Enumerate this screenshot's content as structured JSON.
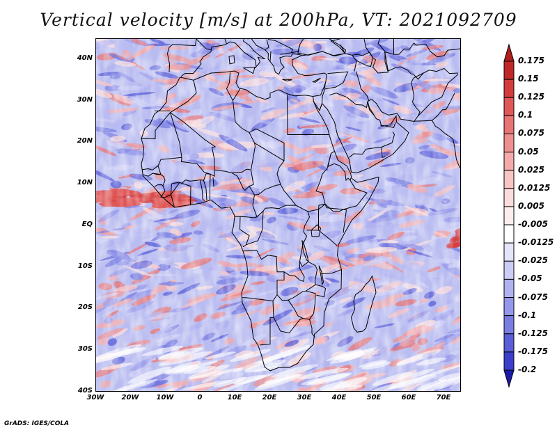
{
  "title": "Vertical velocity [m/s] at 200hPa, VT: 2021092709",
  "credit": "GrADS: IGES/COLA",
  "map": {
    "lon_range": [
      -30,
      75
    ],
    "lat_range": [
      -40,
      45
    ],
    "lat_ticks": [
      {
        "value": 40,
        "label": "40N"
      },
      {
        "value": 30,
        "label": "30N"
      },
      {
        "value": 20,
        "label": "20N"
      },
      {
        "value": 10,
        "label": "10N"
      },
      {
        "value": 0,
        "label": "EQ"
      },
      {
        "value": -10,
        "label": "10S"
      },
      {
        "value": -20,
        "label": "20S"
      },
      {
        "value": -30,
        "label": "30S"
      },
      {
        "value": -40,
        "label": "40S"
      }
    ],
    "lon_ticks": [
      {
        "value": -30,
        "label": "30W"
      },
      {
        "value": -20,
        "label": "20W"
      },
      {
        "value": -10,
        "label": "10W"
      },
      {
        "value": 0,
        "label": "0"
      },
      {
        "value": 10,
        "label": "10E"
      },
      {
        "value": 20,
        "label": "20E"
      },
      {
        "value": 30,
        "label": "30E"
      },
      {
        "value": 40,
        "label": "40E"
      },
      {
        "value": 50,
        "label": "50E"
      },
      {
        "value": 60,
        "label": "60E"
      },
      {
        "value": 70,
        "label": "70E"
      }
    ]
  },
  "colorbar": {
    "levels": [
      {
        "label": "0.175",
        "color": "#c02828"
      },
      {
        "label": "0.15",
        "color": "#d43c3c"
      },
      {
        "label": "0.125",
        "color": "#e05858"
      },
      {
        "label": "0.1",
        "color": "#e87474"
      },
      {
        "label": "0.075",
        "color": "#ef9090"
      },
      {
        "label": "0.05",
        "color": "#f4aaaa"
      },
      {
        "label": "0.025",
        "color": "#f8c4c4"
      },
      {
        "label": "0.0125",
        "color": "#fbdcdc"
      },
      {
        "label": "0.005",
        "color": "#fdeeee"
      },
      {
        "label": "-0.005",
        "color": "#ffffff"
      },
      {
        "label": "-0.0125",
        "color": "#e4e4fb"
      },
      {
        "label": "-0.025",
        "color": "#cccdf6"
      },
      {
        "label": "-0.05",
        "color": "#b0b2f0"
      },
      {
        "label": "-0.075",
        "color": "#9598ea"
      },
      {
        "label": "-0.1",
        "color": "#7a7ee2"
      },
      {
        "label": "-0.125",
        "color": "#5a5ed8"
      },
      {
        "label": "-0.175",
        "color": "#3c3ecc"
      },
      {
        "label": "-0.2",
        "color": "#2424b8"
      }
    ],
    "top_cap_color": "#b01e1e",
    "bottom_cap_color": "#1a1aa8"
  }
}
